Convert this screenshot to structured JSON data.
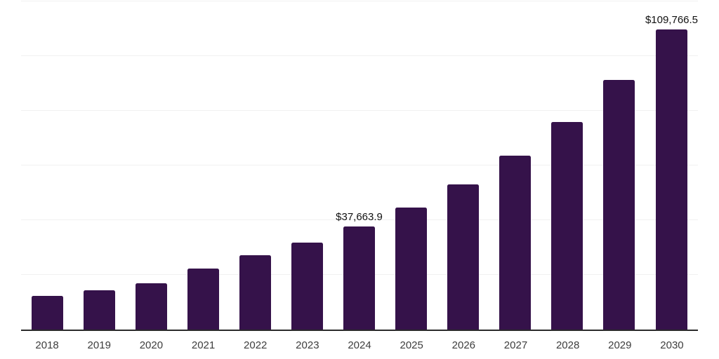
{
  "chart_data": {
    "type": "bar",
    "categories": [
      "2018",
      "2019",
      "2020",
      "2021",
      "2022",
      "2023",
      "2024",
      "2025",
      "2026",
      "2027",
      "2028",
      "2029",
      "2030"
    ],
    "values": [
      12200,
      14350,
      16900,
      22200,
      27100,
      31850,
      37663.9,
      44600,
      53100,
      63500,
      75900,
      91250,
      109766.5
    ],
    "data_labels": [
      "",
      "",
      "",
      "",
      "",
      "",
      "$37,663.9",
      "",
      "",
      "",
      "",
      "",
      "$109,766.5"
    ],
    "ylim": [
      0,
      120000
    ],
    "gridline_step": 20000,
    "grid": true,
    "legend": false,
    "y_axis_labels_visible": false,
    "bar_color": "#35124A"
  },
  "style": {
    "background_color": "#FFFFFF",
    "gridline_color": "#F1F1F1",
    "axis_line_color": "#2B2B2B",
    "tick_label_color": "#3D3D3D",
    "data_label_color": "#111111"
  }
}
